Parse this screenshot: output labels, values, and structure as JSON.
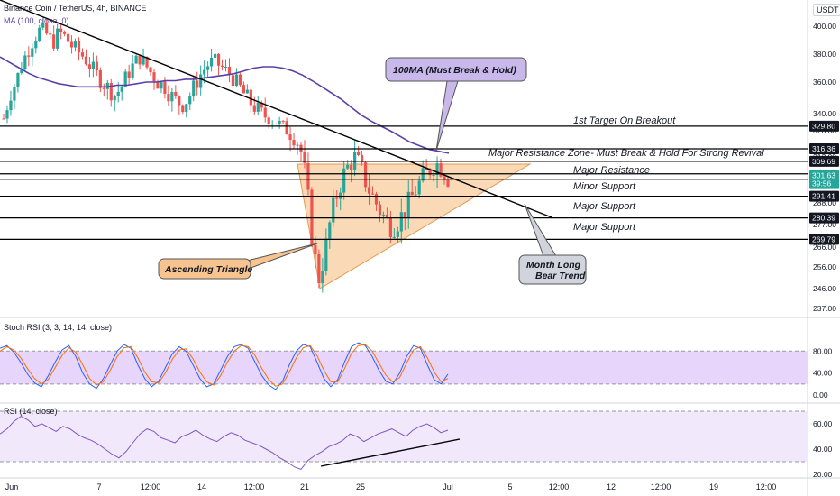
{
  "header": {
    "symbol": "Binance Coin / TetherUS, 4h, BINANCE",
    "ma_label": "MA (100, close, 0)",
    "stoch_label": "Stoch RSI (3, 3, 14, 14, close)",
    "rsi_label": "RSI (14, close)",
    "currency": "USDT"
  },
  "chart_data": [
    {
      "type": "line",
      "panel": "price",
      "title": "Binance Coin / TetherUS, 4h, BINANCE",
      "xlabel": "",
      "ylabel": "",
      "ylim": [
        236,
        413
      ],
      "x_ticks": [
        "Jun",
        "7",
        "12:00",
        "14",
        "12:00",
        "21",
        "25",
        "Jul",
        "5",
        "12:00",
        "12",
        "12:00",
        "19",
        "12:00"
      ],
      "y_ticks": [
        237,
        246,
        256,
        266,
        277,
        288,
        300,
        312,
        326,
        340,
        360,
        380,
        400
      ],
      "y_tick_labels": [
        "237.00",
        "246.00",
        "256.00",
        "266.00",
        "277.00",
        "288.00",
        "300.00",
        "312.00",
        "326.00",
        "340.00",
        "360.00",
        "380.00",
        "400.00"
      ],
      "price_close": [
        336,
        352,
        360,
        374,
        383,
        392,
        398,
        394,
        388,
        396,
        392,
        386,
        382,
        378,
        372,
        366,
        360,
        356,
        352,
        356,
        365,
        372,
        378,
        372,
        366,
        360,
        358,
        352,
        348,
        346,
        350,
        358,
        366,
        372,
        375,
        372,
        368,
        364,
        358,
        352,
        347,
        343,
        339,
        336,
        334,
        330,
        327,
        324,
        318,
        300,
        270,
        250,
        262,
        280,
        292,
        302,
        308,
        312,
        305,
        296,
        290,
        284,
        279,
        276,
        279,
        284,
        290,
        296,
        301,
        305,
        309,
        306,
        301
      ],
      "ma_100": [
        378,
        374,
        370,
        366,
        363,
        361,
        359,
        358,
        357,
        357,
        357,
        357,
        358,
        358,
        359,
        360,
        360,
        361,
        361,
        362,
        362,
        363,
        364,
        365,
        366,
        368,
        370,
        371,
        371,
        370,
        368,
        365,
        361,
        357,
        353,
        349,
        344,
        339,
        334,
        330,
        326,
        323,
        320,
        318,
        316,
        315,
        314
      ],
      "horizontal_levels": [
        {
          "label": "1st Target On Breakout",
          "value": 329.8,
          "tag": "329.80"
        },
        {
          "label": "Major Resistance Zone- Must Break & Hold For Strong Revival",
          "value": 316.36,
          "tag": "316.36"
        },
        {
          "label": "",
          "value": 309.69,
          "tag": "309.69"
        },
        {
          "label": "Major Resistance",
          "value": 303,
          "tag": ""
        },
        {
          "label": "Minor Support",
          "value": 300.11,
          "tag": "300.11"
        },
        {
          "label": "Major Support",
          "value": 291.41,
          "tag": "291.41"
        },
        {
          "label": "",
          "value": 280.39,
          "tag": "280.39"
        },
        {
          "label": "Major Support",
          "value": 269.79,
          "tag": "269.79"
        }
      ],
      "current_price": {
        "value": 301.63,
        "tag": "301.63",
        "countdown": "39:56"
      },
      "annotations": [
        "100MA (Must Break & Hold)",
        "Ascending Triangle",
        "Month Long Bear Trend"
      ],
      "colors": {
        "up": "#26a69a",
        "down": "#ef5350",
        "ma": "#5b3fa8",
        "triangle": "#f7c48f",
        "callout_purple": "#c9b8ea",
        "callout_orange": "#f7c48f",
        "callout_gray": "#d1d4dc"
      }
    },
    {
      "type": "line",
      "panel": "stoch_rsi",
      "title": "Stoch RSI (3, 3, 14, 14, close)",
      "ylim": [
        0,
        100
      ],
      "y_tick_labels": [
        "80.00",
        "40.00",
        "0.00"
      ],
      "band": [
        20,
        80
      ],
      "series": [
        {
          "name": "",
          "values": [
            85,
            90,
            78,
            60,
            38,
            22,
            15,
            35,
            60,
            82,
            90,
            70,
            40,
            20,
            12,
            30,
            55,
            80,
            92,
            85,
            55,
            30,
            15,
            25,
            50,
            75,
            88,
            80,
            55,
            30,
            15,
            20,
            45,
            70,
            88,
            92,
            85,
            60,
            35,
            18,
            10,
            25,
            55,
            80,
            92,
            88,
            60,
            30,
            15,
            28,
            60,
            88,
            95,
            90,
            70,
            45,
            25,
            20,
            40,
            70,
            90,
            85,
            55,
            28,
            20,
            38
          ]
        },
        {
          "name": "",
          "values": [
            80,
            88,
            82,
            68,
            48,
            30,
            20,
            28,
            50,
            72,
            86,
            78,
            55,
            30,
            18,
            24,
            45,
            70,
            86,
            88,
            68,
            42,
            24,
            22,
            40,
            65,
            82,
            84,
            66,
            42,
            24,
            18,
            35,
            60,
            80,
            90,
            88,
            72,
            48,
            28,
            16,
            20,
            42,
            68,
            86,
            90,
            72,
            45,
            24,
            24,
            48,
            76,
            90,
            92,
            80,
            58,
            36,
            24,
            32,
            58,
            82,
            88,
            68,
            42,
            24,
            30
          ]
        }
      ]
    },
    {
      "type": "line",
      "panel": "rsi",
      "title": "RSI (14, close)",
      "ylim": [
        15,
        75
      ],
      "y_tick_labels": [
        "60.00",
        "40.00",
        "20.00"
      ],
      "band": [
        30,
        70
      ],
      "series": [
        {
          "name": "",
          "values": [
            52,
            56,
            62,
            66,
            63,
            58,
            60,
            57,
            54,
            58,
            56,
            52,
            49,
            47,
            44,
            40,
            36,
            33,
            38,
            45,
            52,
            56,
            54,
            49,
            47,
            45,
            50,
            52,
            55,
            51,
            48,
            46,
            50,
            53,
            51,
            47,
            45,
            43,
            40,
            37,
            33,
            30,
            26,
            24,
            31,
            35,
            38,
            42,
            44,
            47,
            52,
            50,
            46,
            49,
            52,
            54,
            56,
            53,
            50,
            55,
            58,
            60,
            57,
            53,
            55
          ]
        }
      ]
    }
  ]
}
